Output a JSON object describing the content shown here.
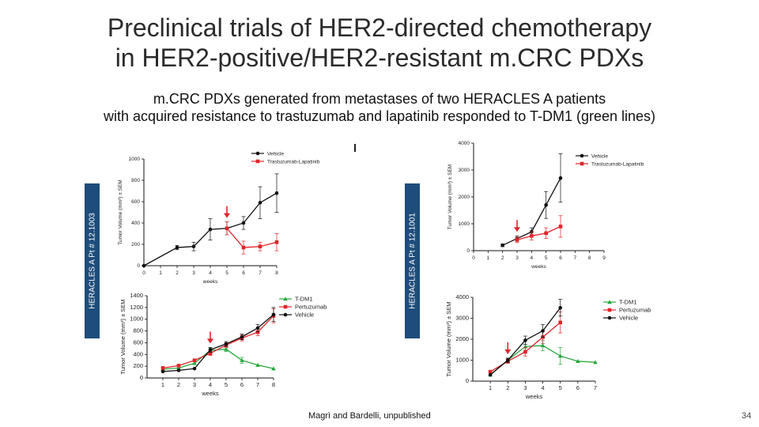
{
  "slide": {
    "title_line1": "Preclinical trials of HER2-directed chemotherapy",
    "title_line2": "in HER2-positive/HER2-resistant m.CRC PDXs",
    "subtitle_line1": "m.CRC PDXs generated from metastases of two HERACLES A patients",
    "subtitle_line2": "with acquired resistance to trastuzumab and lapatinib responded to T-DM1 (green lines)",
    "left_label": "HERACLES A Pt # 12.1003",
    "right_label": "HERACLES A Pt # 12.1001",
    "credit": "Magrì and Bardelli, unpublished",
    "page_number": "34"
  },
  "colors": {
    "black": "#111111",
    "red": "#e0252b",
    "green": "#2aa640",
    "bar": "#1e4d7b"
  },
  "chart_data": [
    {
      "type": "line",
      "id": "top-left",
      "xlabel": "weeks",
      "ylabel": "Tumor Volume (mm³) ± SEM",
      "xlim": [
        0,
        8
      ],
      "ylim": [
        0,
        1000
      ],
      "xticks": [
        0,
        1,
        2,
        3,
        4,
        5,
        6,
        7,
        8
      ],
      "yticks": [
        0,
        200,
        400,
        600,
        800,
        1000
      ],
      "legend_position": "top-right",
      "arrow_x": 5,
      "series": [
        {
          "name": "Vehicle",
          "color": "black",
          "marker": "circle",
          "x": [
            0,
            2,
            3,
            4,
            5,
            6,
            7,
            8
          ],
          "y": [
            0,
            170,
            180,
            340,
            350,
            400,
            590,
            680
          ],
          "err": [
            0,
            20,
            40,
            100,
            60,
            60,
            150,
            180
          ]
        },
        {
          "name": "Trastuzumab-Lapatinib",
          "color": "red",
          "marker": "square",
          "x": [
            5,
            6,
            7,
            8
          ],
          "y": [
            350,
            170,
            180,
            220
          ],
          "err": [
            60,
            60,
            40,
            80
          ]
        }
      ]
    },
    {
      "type": "line",
      "id": "top-right",
      "xlabel": "weeks",
      "ylabel": "Tumor Volume (mm³) ± SEM",
      "xlim": [
        0,
        9
      ],
      "ylim": [
        0,
        4000
      ],
      "xticks": [
        0,
        1,
        2,
        3,
        4,
        5,
        6,
        7,
        8,
        9
      ],
      "yticks": [
        0,
        1000,
        2000,
        3000,
        4000
      ],
      "legend_position": "top-right",
      "arrow_x": 3,
      "series": [
        {
          "name": "Vehicle",
          "color": "black",
          "marker": "circle",
          "x": [
            2,
            3,
            4,
            5,
            6
          ],
          "y": [
            200,
            450,
            700,
            1700,
            2700
          ],
          "err": [
            50,
            100,
            150,
            500,
            900
          ]
        },
        {
          "name": "Trastuzumab-Lapatinib",
          "color": "red",
          "marker": "square",
          "x": [
            3,
            4,
            5,
            6
          ],
          "y": [
            400,
            550,
            650,
            900
          ],
          "err": [
            100,
            150,
            200,
            400
          ]
        }
      ]
    },
    {
      "type": "line",
      "id": "bottom-left",
      "xlabel": "weeks",
      "ylabel": "Tumor Volume (mm³) ± SEM",
      "xlim": [
        0,
        8
      ],
      "ylim": [
        0,
        1400
      ],
      "xticks": [
        1,
        2,
        3,
        4,
        5,
        6,
        7,
        8
      ],
      "yticks": [
        0,
        200,
        400,
        600,
        800,
        1000,
        1200,
        1400
      ],
      "legend_position": "top-right",
      "arrow_x": 4,
      "series": [
        {
          "name": "T-DM1",
          "color": "green",
          "marker": "triangle",
          "x": [
            1,
            2,
            3,
            4,
            5,
            6,
            7,
            8
          ],
          "y": [
            150,
            170,
            250,
            470,
            490,
            300,
            220,
            160
          ],
          "err": [
            0,
            0,
            0,
            40,
            40,
            50,
            0,
            0
          ]
        },
        {
          "name": "Pertuzumab",
          "color": "red",
          "marker": "square",
          "x": [
            1,
            2,
            3,
            4,
            5,
            6,
            7,
            8
          ],
          "y": [
            170,
            210,
            300,
            420,
            560,
            680,
            780,
            1060
          ],
          "err": [
            0,
            0,
            0,
            40,
            40,
            50,
            60,
            120
          ]
        },
        {
          "name": "Vehicle",
          "color": "black",
          "marker": "circle",
          "x": [
            1,
            2,
            3,
            4,
            5,
            6,
            7,
            8
          ],
          "y": [
            110,
            130,
            160,
            480,
            580,
            700,
            850,
            1080
          ],
          "err": [
            0,
            0,
            0,
            40,
            40,
            50,
            60,
            120
          ]
        }
      ]
    },
    {
      "type": "line",
      "id": "bottom-right",
      "xlabel": "weeks",
      "ylabel": "Tumor Volume (mm³) ± SEM",
      "xlim": [
        0,
        7
      ],
      "ylim": [
        0,
        4000
      ],
      "xticks": [
        1,
        2,
        3,
        4,
        5,
        6,
        7
      ],
      "yticks": [
        0,
        1000,
        2000,
        3000,
        4000
      ],
      "legend_position": "top-right",
      "arrow_x": 2,
      "series": [
        {
          "name": "T-DM1",
          "color": "green",
          "marker": "triangle",
          "x": [
            1,
            2,
            3,
            4,
            5,
            6,
            7
          ],
          "y": [
            300,
            1000,
            1650,
            1700,
            1200,
            950,
            900
          ],
          "err": [
            0,
            100,
            250,
            250,
            400,
            0,
            0
          ]
        },
        {
          "name": "Pertuzumab",
          "color": "red",
          "marker": "square",
          "x": [
            1,
            2,
            3,
            4,
            5
          ],
          "y": [
            450,
            950,
            1400,
            2100,
            2800
          ],
          "err": [
            0,
            100,
            200,
            300,
            500
          ]
        },
        {
          "name": "Vehicle",
          "color": "black",
          "marker": "circle",
          "x": [
            1,
            2,
            3,
            4,
            5
          ],
          "y": [
            300,
            1000,
            1950,
            2400,
            3500
          ],
          "err": [
            0,
            100,
            200,
            300,
            400
          ]
        }
      ]
    }
  ]
}
